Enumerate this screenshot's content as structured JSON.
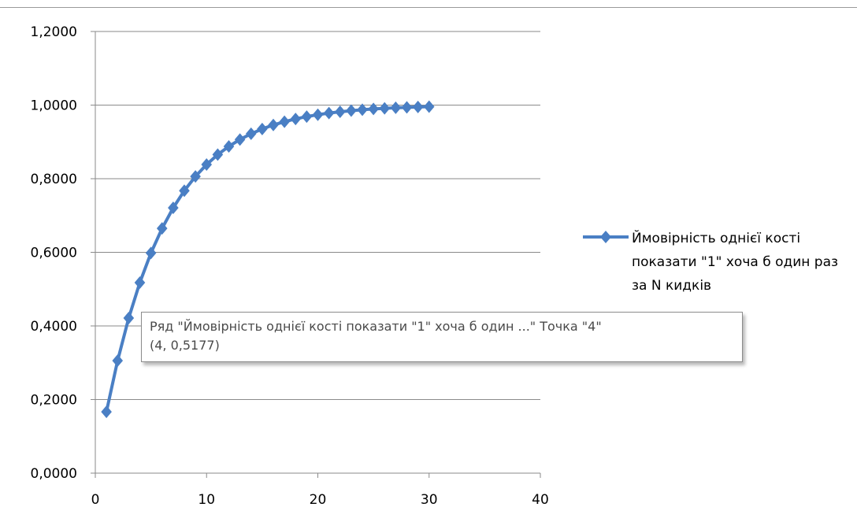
{
  "chart_data": {
    "type": "scatter",
    "title": "",
    "xlabel": "",
    "ylabel": "",
    "xlim": [
      0,
      40
    ],
    "ylim": [
      0,
      1.2
    ],
    "xticks": [
      0,
      10,
      20,
      30,
      40
    ],
    "yticks": [
      0,
      0.2,
      0.4,
      0.6,
      0.8,
      1.0,
      1.2
    ],
    "x_tick_labels": [
      "0",
      "10",
      "20",
      "30",
      "40"
    ],
    "y_tick_labels": [
      "0,0000",
      "0,2000",
      "0,4000",
      "0,6000",
      "0,8000",
      "1,0000",
      "1,2000"
    ],
    "grid": "horizontal",
    "legend_position": "right",
    "line_color": "#4a7fc4",
    "marker": "diamond",
    "series": [
      {
        "name": "Ймовірність однієї кості показати \"1\" хоча б один раз за N кидків",
        "x": [
          1,
          2,
          3,
          4,
          5,
          6,
          7,
          8,
          9,
          10,
          11,
          12,
          13,
          14,
          15,
          16,
          17,
          18,
          19,
          20,
          21,
          22,
          23,
          24,
          25,
          26,
          27,
          28,
          29,
          30
        ],
        "y": [
          0.1667,
          0.3056,
          0.4213,
          0.5177,
          0.5981,
          0.6651,
          0.7209,
          0.7674,
          0.8062,
          0.8385,
          0.8654,
          0.8878,
          0.9065,
          0.9221,
          0.9351,
          0.9459,
          0.9549,
          0.9624,
          0.9687,
          0.9739,
          0.9783,
          0.9819,
          0.9849,
          0.9874,
          0.9895,
          0.9913,
          0.9927,
          0.9939,
          0.9949,
          0.9958
        ]
      }
    ]
  },
  "legend": {
    "label": "Ймовірність однієї кості показати \"1\" хоча б один раз за N кидків"
  },
  "tooltip": {
    "line1": "Ряд \"Ймовірність однієї кості показати \"1\" хоча б один ...\" Точка \"4\"",
    "line2": "(4, 0,5177)"
  }
}
